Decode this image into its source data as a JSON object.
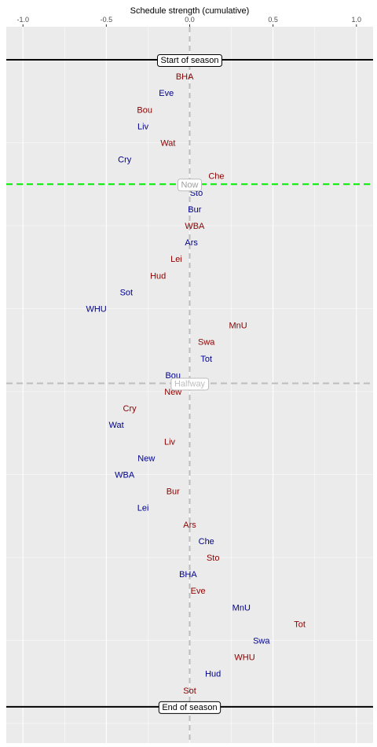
{
  "chart_data": {
    "type": "scatter",
    "title": "",
    "xlabel": "Schedule strength (cumulative)",
    "ylabel": "",
    "xlim": [
      -1.1,
      1.1
    ],
    "x_ticks": [
      -1.0,
      -0.5,
      0.0,
      0.5,
      1.0
    ],
    "x_tick_labels": [
      "-1.0",
      "-0.5",
      "0.0",
      "0.5",
      "1.0"
    ],
    "grid": true,
    "colors": {
      "panel": "#ebebeb",
      "grid": "#ffffff",
      "home": "#8b0000",
      "away": "#00008b",
      "now_line": "#00ee00",
      "halfway_line": "#bdbdbd",
      "center_line": "#bdbdbd",
      "season_line": "#000000"
    },
    "markers": [
      {
        "label": "Start of season",
        "row": 0,
        "style": "season"
      },
      {
        "label": "Now",
        "row": 7.5,
        "style": "now"
      },
      {
        "label": "Halfway",
        "row": 19.5,
        "style": "halfway"
      },
      {
        "label": "End of season",
        "row": 39,
        "style": "season"
      }
    ],
    "points": [
      {
        "team": "BHA",
        "x": -0.03,
        "row": 1,
        "venue": "home"
      },
      {
        "team": "Eve",
        "x": -0.14,
        "row": 2,
        "venue": "away"
      },
      {
        "team": "Bou",
        "x": -0.27,
        "row": 3,
        "venue": "home"
      },
      {
        "team": "Liv",
        "x": -0.28,
        "row": 4,
        "venue": "away"
      },
      {
        "team": "Wat",
        "x": -0.13,
        "row": 5,
        "venue": "home"
      },
      {
        "team": "Cry",
        "x": -0.39,
        "row": 6,
        "venue": "away"
      },
      {
        "team": "Che",
        "x": 0.16,
        "row": 7,
        "venue": "home"
      },
      {
        "team": "Sto",
        "x": 0.04,
        "row": 8,
        "venue": "away"
      },
      {
        "team": "Bur",
        "x": 0.03,
        "row": 9,
        "venue": "away"
      },
      {
        "team": "WBA",
        "x": 0.03,
        "row": 10,
        "venue": "home"
      },
      {
        "team": "Ars",
        "x": 0.01,
        "row": 11,
        "venue": "away"
      },
      {
        "team": "Lei",
        "x": -0.08,
        "row": 12,
        "venue": "home"
      },
      {
        "team": "Hud",
        "x": -0.19,
        "row": 13,
        "venue": "home"
      },
      {
        "team": "Sot",
        "x": -0.38,
        "row": 14,
        "venue": "away"
      },
      {
        "team": "WHU",
        "x": -0.56,
        "row": 15,
        "venue": "away"
      },
      {
        "team": "MnU",
        "x": 0.29,
        "row": 16,
        "venue": "home"
      },
      {
        "team": "Swa",
        "x": 0.1,
        "row": 17,
        "venue": "home"
      },
      {
        "team": "Tot",
        "x": 0.1,
        "row": 18,
        "venue": "away"
      },
      {
        "team": "Bou",
        "x": -0.1,
        "row": 19,
        "venue": "away"
      },
      {
        "team": "New",
        "x": -0.1,
        "row": 20,
        "venue": "home"
      },
      {
        "team": "Cry",
        "x": -0.36,
        "row": 21,
        "venue": "home"
      },
      {
        "team": "Wat",
        "x": -0.44,
        "row": 22,
        "venue": "away"
      },
      {
        "team": "Liv",
        "x": -0.12,
        "row": 23,
        "venue": "home"
      },
      {
        "team": "New",
        "x": -0.26,
        "row": 24,
        "venue": "away"
      },
      {
        "team": "WBA",
        "x": -0.39,
        "row": 25,
        "venue": "away"
      },
      {
        "team": "Bur",
        "x": -0.1,
        "row": 26,
        "venue": "home"
      },
      {
        "team": "Lei",
        "x": -0.28,
        "row": 27,
        "venue": "away"
      },
      {
        "team": "Ars",
        "x": 0.0,
        "row": 28,
        "venue": "home"
      },
      {
        "team": "Che",
        "x": 0.1,
        "row": 29,
        "venue": "away"
      },
      {
        "team": "Sto",
        "x": 0.14,
        "row": 30,
        "venue": "home"
      },
      {
        "team": "BHA",
        "x": -0.01,
        "row": 31,
        "venue": "away"
      },
      {
        "team": "Eve",
        "x": 0.05,
        "row": 32,
        "venue": "home"
      },
      {
        "team": "MnU",
        "x": 0.31,
        "row": 33,
        "venue": "away"
      },
      {
        "team": "Tot",
        "x": 0.66,
        "row": 34,
        "venue": "home"
      },
      {
        "team": "Swa",
        "x": 0.43,
        "row": 35,
        "venue": "away"
      },
      {
        "team": "WHU",
        "x": 0.33,
        "row": 36,
        "venue": "home"
      },
      {
        "team": "Hud",
        "x": 0.14,
        "row": 37,
        "venue": "away"
      },
      {
        "team": "Sot",
        "x": 0.0,
        "row": 38,
        "venue": "home"
      }
    ]
  }
}
